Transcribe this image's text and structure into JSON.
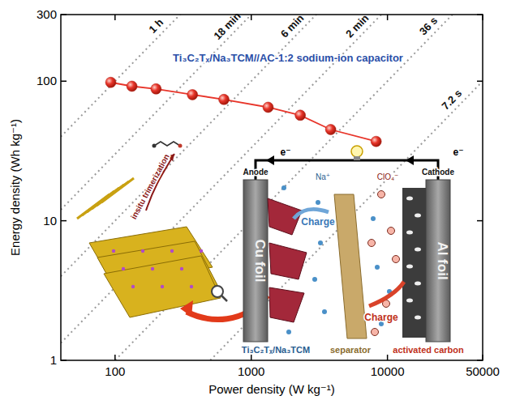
{
  "chart_data": {
    "type": "scatter",
    "x_label": "Power density (W kg⁻¹)",
    "y_label": "Energy density (Wh kg⁻¹)",
    "log": true,
    "xlim": [
      40,
      50000
    ],
    "ylim": [
      1,
      300
    ],
    "xticks": [
      100,
      1000,
      10000,
      50000
    ],
    "yticks": [
      1,
      10,
      100,
      300
    ],
    "grid": false,
    "legend": "top",
    "series": [
      {
        "name": "Ti₃C₂Tₓ/Na₃TCM//AC-1:2 sodium-ion capacitor",
        "color": "#e8352a",
        "marker": "circle",
        "line_style": "solid",
        "x": [
          93,
          133,
          200,
          370,
          630,
          1330,
          2290,
          3830,
          8260
        ],
        "values": [
          98,
          92,
          88,
          80,
          74,
          65,
          57,
          45,
          37
        ]
      }
    ],
    "time_lines": [
      {
        "label": "1 h",
        "hours": 1
      },
      {
        "label": "18 min",
        "hours": 0.3
      },
      {
        "label": "6 min",
        "hours": 0.1
      },
      {
        "label": "2 min",
        "hours": 0.0333
      },
      {
        "label": "36 s",
        "hours": 0.01
      },
      {
        "label": "7.2 s",
        "hours": 0.002
      }
    ],
    "inset": {
      "anode": "Anode",
      "cathode": "Cathode",
      "cu_foil": "Cu foil",
      "al_foil": "Al foil",
      "charge_anode": "Charge",
      "charge_cathode": "Charge",
      "cation": "Na⁺",
      "anion": "ClO₄⁻",
      "electron_left": "e⁻",
      "electron_right": "e⁻",
      "separator": "separator",
      "cathode_material": "activated carbon",
      "anode_material": "Ti₃C₂Tₓ/Na₃TCM",
      "process": "insitu trimerization"
    }
  }
}
